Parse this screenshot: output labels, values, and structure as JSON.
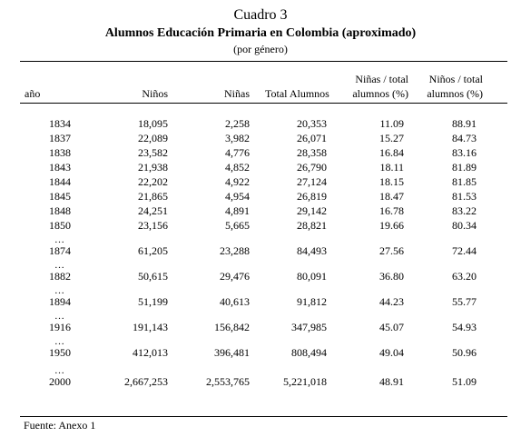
{
  "title": {
    "line1": "Cuadro 3",
    "line2": "Alumnos Educación Primaria en Colombia  (aproximado)",
    "line3": "(por género)"
  },
  "headers": {
    "anio": "año",
    "ninos": "Niños",
    "ninas": "Niñas",
    "total": "Total Alumnos",
    "ninas_pct_l1": "Niñas / total",
    "ninas_pct_l2": "alumnos (%)",
    "ninos_pct_l1": "Niños / total",
    "ninos_pct_l2": "alumnos (%)"
  },
  "ellipsis": "…",
  "rows": [
    {
      "year": "1834",
      "ninos": "18,095",
      "ninas": "2,258",
      "total": "20,353",
      "ninas_pct": "11.09",
      "ninos_pct": "88.91",
      "gap_before": false
    },
    {
      "year": "1837",
      "ninos": "22,089",
      "ninas": "3,982",
      "total": "26,071",
      "ninas_pct": "15.27",
      "ninos_pct": "84.73",
      "gap_before": false
    },
    {
      "year": "1838",
      "ninos": "23,582",
      "ninas": "4,776",
      "total": "28,358",
      "ninas_pct": "16.84",
      "ninos_pct": "83.16",
      "gap_before": false
    },
    {
      "year": "1843",
      "ninos": "21,938",
      "ninas": "4,852",
      "total": "26,790",
      "ninas_pct": "18.11",
      "ninos_pct": "81.89",
      "gap_before": false
    },
    {
      "year": "1844",
      "ninos": "22,202",
      "ninas": "4,922",
      "total": "27,124",
      "ninas_pct": "18.15",
      "ninos_pct": "81.85",
      "gap_before": false
    },
    {
      "year": "1845",
      "ninos": "21,865",
      "ninas": "4,954",
      "total": "26,819",
      "ninas_pct": "18.47",
      "ninos_pct": "81.53",
      "gap_before": false
    },
    {
      "year": "1848",
      "ninos": "24,251",
      "ninas": "4,891",
      "total": "29,142",
      "ninas_pct": "16.78",
      "ninos_pct": "83.22",
      "gap_before": false
    },
    {
      "year": "1850",
      "ninos": "23,156",
      "ninas": "5,665",
      "total": "28,821",
      "ninas_pct": "19.66",
      "ninos_pct": "80.34",
      "gap_before": false
    },
    {
      "year": "1874",
      "ninos": "61,205",
      "ninas": "23,288",
      "total": "84,493",
      "ninas_pct": "27.56",
      "ninos_pct": "72.44",
      "gap_before": true
    },
    {
      "year": "1882",
      "ninos": "50,615",
      "ninas": "29,476",
      "total": "80,091",
      "ninas_pct": "36.80",
      "ninos_pct": "63.20",
      "gap_before": true
    },
    {
      "year": "1894",
      "ninos": "51,199",
      "ninas": "40,613",
      "total": "91,812",
      "ninas_pct": "44.23",
      "ninos_pct": "55.77",
      "gap_before": true
    },
    {
      "year": "1916",
      "ninos": "191,143",
      "ninas": "156,842",
      "total": "347,985",
      "ninas_pct": "45.07",
      "ninos_pct": "54.93",
      "gap_before": true
    },
    {
      "year": "1950",
      "ninos": "412,013",
      "ninas": "396,481",
      "total": "808,494",
      "ninas_pct": "49.04",
      "ninos_pct": "50.96",
      "gap_before": true
    },
    {
      "year": "2000",
      "ninos": "2,667,253",
      "ninas": "2,553,765",
      "total": "5,221,018",
      "ninas_pct": "48.91",
      "ninos_pct": "51.09",
      "gap_before": true
    }
  ],
  "source": "Fuente: Anexo 1"
}
